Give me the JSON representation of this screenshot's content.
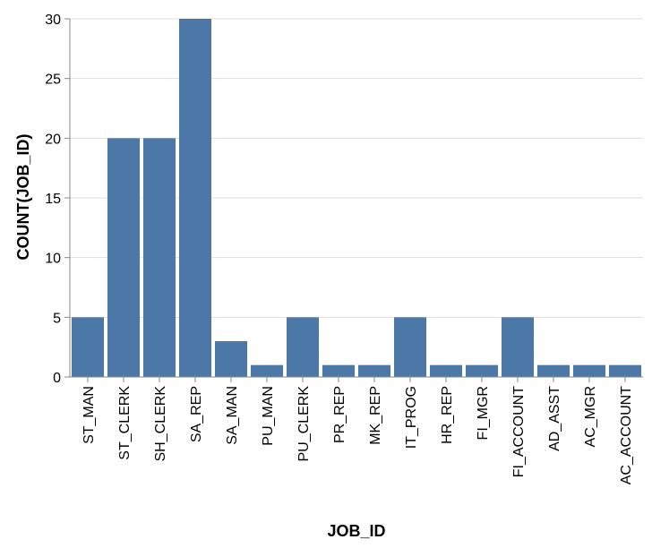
{
  "chart_data": {
    "type": "bar",
    "xlabel": "JOB_ID",
    "ylabel": "COUNT(JOB_ID)",
    "categories": [
      "ST_MAN",
      "ST_CLERK",
      "SH_CLERK",
      "SA_REP",
      "SA_MAN",
      "PU_MAN",
      "PU_CLERK",
      "PR_REP",
      "MK_REP",
      "IT_PROG",
      "HR_REP",
      "FI_MGR",
      "FI_ACCOUNT",
      "AD_ASST",
      "AC_MGR",
      "AC_ACCOUNT"
    ],
    "values": [
      5,
      20,
      20,
      30,
      3,
      1,
      5,
      1,
      1,
      5,
      1,
      1,
      5,
      1,
      1,
      1
    ],
    "ylim": [
      0,
      30
    ],
    "yticks": [
      0,
      5,
      10,
      15,
      20,
      25,
      30
    ],
    "grid": true,
    "bar_color": "#4c78a8"
  }
}
